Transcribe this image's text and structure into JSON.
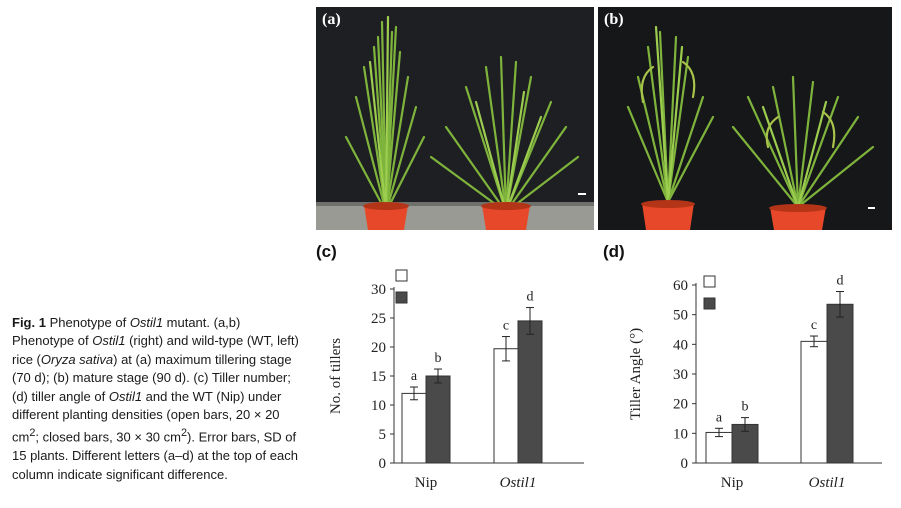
{
  "caption": {
    "fig": "Fig. 1",
    "t1": "Phenotype of ",
    "gene1": "Ostil1",
    "t2": " mutant. (a,b) Phenotype of ",
    "gene2": "Ostil1",
    "t3": " (right) and wild-type (WT, left) rice (",
    "species": "Oryza sativa",
    "t4": ") at (a) maximum tillering stage (70 d); (b) mature stage (90 d). (c) Tiller number; (d) tiller angle of ",
    "gene3": "Ostil1",
    "t5": " and the WT (Nip) under different planting densities (open bars, 20 × 20 cm",
    "sup1": "2",
    "t6": "; closed bars, 30 × 30 cm",
    "sup2": "2",
    "t7": "). Error bars, SD of 15 plants. Different letters (a–d) at the top of each column indicate significant difference."
  },
  "panels": {
    "a": "(a)",
    "b": "(b)",
    "c": "(c)",
    "d": "(d)"
  },
  "colors": {
    "open_bar": "#ffffff",
    "closed_bar": "#4a4a4a",
    "photo_bg": "#1e1f22",
    "pot": "#e8482a",
    "plant": "#7fb43c"
  },
  "chart_data": [
    {
      "type": "bar",
      "categories": [
        "Nip",
        "Ostil1"
      ],
      "ylabel": "No. of tillers",
      "ylim": [
        0,
        30
      ],
      "yticks": [
        0,
        5,
        10,
        15,
        20,
        25,
        30
      ],
      "series": [
        {
          "values": [
            12,
            19.7
          ],
          "err": [
            1.1,
            2.1
          ],
          "letters": [
            "a",
            "c"
          ]
        },
        {
          "values": [
            15,
            24.5
          ],
          "err": [
            1.2,
            2.3
          ],
          "letters": [
            "b",
            "d"
          ]
        }
      ]
    },
    {
      "type": "bar",
      "categories": [
        "Nip",
        "Ostil1"
      ],
      "ylabel": "Tiller Angle (°)",
      "ylim": [
        0,
        60
      ],
      "yticks": [
        0,
        10,
        20,
        30,
        40,
        50,
        60
      ],
      "series": [
        {
          "values": [
            10.3,
            41
          ],
          "err": [
            1.4,
            1.8
          ],
          "letters": [
            "a",
            "c"
          ]
        },
        {
          "values": [
            13,
            53.5
          ],
          "err": [
            2.3,
            4.3
          ],
          "letters": [
            "b",
            "d"
          ]
        }
      ]
    }
  ]
}
